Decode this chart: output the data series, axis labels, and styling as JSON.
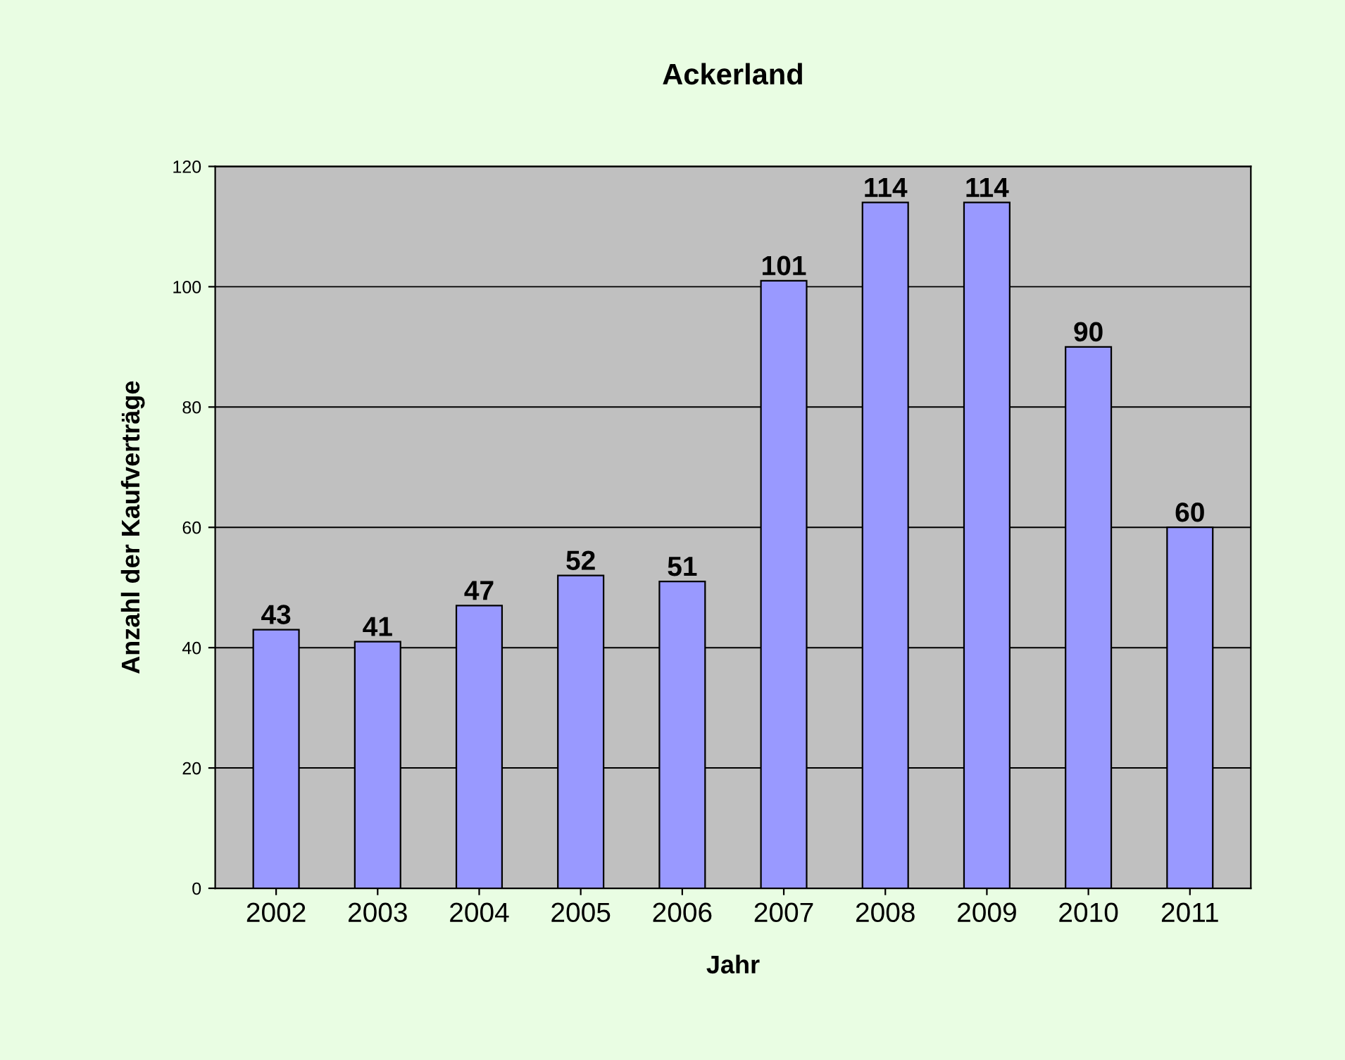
{
  "chart_data": {
    "type": "bar",
    "title": "Ackerland",
    "xlabel": "Jahr",
    "ylabel": "Anzahl der Kaufverträge",
    "categories": [
      "2002",
      "2003",
      "2004",
      "2005",
      "2006",
      "2007",
      "2008",
      "2009",
      "2010",
      "2011"
    ],
    "values": [
      43,
      41,
      47,
      52,
      51,
      101,
      114,
      114,
      90,
      60
    ],
    "color": "#9999ff",
    "ylim": [
      0,
      120
    ],
    "yticks": [
      0,
      20,
      40,
      60,
      80,
      100,
      120
    ],
    "grid": "y",
    "data_labels": true,
    "legend": false
  }
}
